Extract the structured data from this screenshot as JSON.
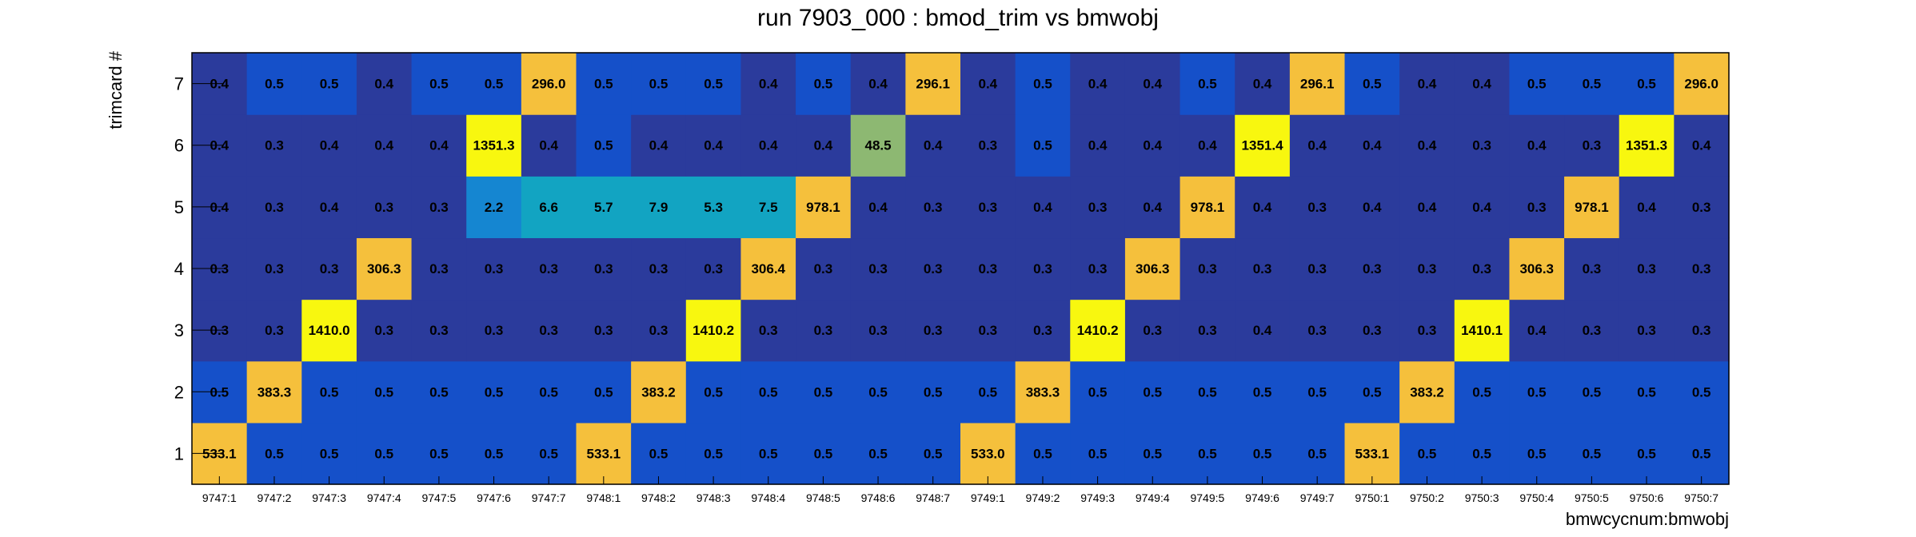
{
  "chart_data": {
    "type": "heatmap",
    "title": "run 7903_000 : bmod_trim vs bmwobj",
    "xlabel": "bmwcycnum:bmwobj",
    "ylabel": "trimcard #",
    "x_categories": [
      "9747:1",
      "9747:2",
      "9747:3",
      "9747:4",
      "9747:5",
      "9747:6",
      "9747:7",
      "9748:1",
      "9748:2",
      "9748:3",
      "9748:4",
      "9748:5",
      "9748:6",
      "9748:7",
      "9749:1",
      "9749:2",
      "9749:3",
      "9749:4",
      "9749:5",
      "9749:6",
      "9749:7",
      "9750:1",
      "9750:2",
      "9750:3",
      "9750:4",
      "9750:5",
      "9750:6",
      "9750:7"
    ],
    "y_categories": [
      "1",
      "2",
      "3",
      "4",
      "5",
      "6",
      "7"
    ],
    "values": [
      [
        "533.1",
        "0.5",
        "0.5",
        "0.5",
        "0.5",
        "0.5",
        "0.5",
        "533.1",
        "0.5",
        "0.5",
        "0.5",
        "0.5",
        "0.5",
        "0.5",
        "533.0",
        "0.5",
        "0.5",
        "0.5",
        "0.5",
        "0.5",
        "0.5",
        "533.1",
        "0.5",
        "0.5",
        "0.5",
        "0.5",
        "0.5",
        "0.5"
      ],
      [
        "0.5",
        "383.3",
        "0.5",
        "0.5",
        "0.5",
        "0.5",
        "0.5",
        "0.5",
        "383.2",
        "0.5",
        "0.5",
        "0.5",
        "0.5",
        "0.5",
        "0.5",
        "383.3",
        "0.5",
        "0.5",
        "0.5",
        "0.5",
        "0.5",
        "0.5",
        "383.2",
        "0.5",
        "0.5",
        "0.5",
        "0.5",
        "0.5"
      ],
      [
        "0.3",
        "0.3",
        "1410.0",
        "0.3",
        "0.3",
        "0.3",
        "0.3",
        "0.3",
        "0.3",
        "1410.2",
        "0.3",
        "0.3",
        "0.3",
        "0.3",
        "0.3",
        "0.3",
        "1410.2",
        "0.3",
        "0.3",
        "0.4",
        "0.3",
        "0.3",
        "0.3",
        "1410.1",
        "0.4",
        "0.3",
        "0.3",
        "0.3"
      ],
      [
        "0.3",
        "0.3",
        "0.3",
        "306.3",
        "0.3",
        "0.3",
        "0.3",
        "0.3",
        "0.3",
        "0.3",
        "306.4",
        "0.3",
        "0.3",
        "0.3",
        "0.3",
        "0.3",
        "0.3",
        "306.3",
        "0.3",
        "0.3",
        "0.3",
        "0.3",
        "0.3",
        "0.3",
        "306.3",
        "0.3",
        "0.3",
        "0.3"
      ],
      [
        "0.4",
        "0.3",
        "0.4",
        "0.3",
        "0.3",
        "2.2",
        "6.6",
        "5.7",
        "7.9",
        "5.3",
        "7.5",
        "978.1",
        "0.4",
        "0.3",
        "0.3",
        "0.4",
        "0.3",
        "0.4",
        "978.1",
        "0.4",
        "0.3",
        "0.4",
        "0.4",
        "0.4",
        "0.3",
        "978.1",
        "0.4",
        "0.3"
      ],
      [
        "0.4",
        "0.3",
        "0.4",
        "0.4",
        "0.4",
        "1351.3",
        "0.4",
        "0.5",
        "0.4",
        "0.4",
        "0.4",
        "0.4",
        "48.5",
        "0.4",
        "0.3",
        "0.5",
        "0.4",
        "0.4",
        "0.4",
        "1351.4",
        "0.4",
        "0.4",
        "0.4",
        "0.3",
        "0.4",
        "0.3",
        "1351.3",
        "0.4"
      ],
      [
        "0.4",
        "0.5",
        "0.5",
        "0.4",
        "0.5",
        "0.5",
        "296.0",
        "0.5",
        "0.5",
        "0.5",
        "0.4",
        "0.5",
        "0.4",
        "296.1",
        "0.4",
        "0.5",
        "0.4",
        "0.4",
        "0.5",
        "0.4",
        "296.1",
        "0.5",
        "0.4",
        "0.4",
        "0.5",
        "0.5",
        "0.5",
        "296.0"
      ]
    ],
    "colors": {
      "very_low": "#2b3b9c",
      "low": "#1550c9",
      "low_mid": "#1586d1",
      "mid_low": "#12a4c2",
      "mid": "#8db872",
      "high": "#f5c03c",
      "very_high": "#f8f70f"
    },
    "grid": false,
    "colorbar": false
  }
}
